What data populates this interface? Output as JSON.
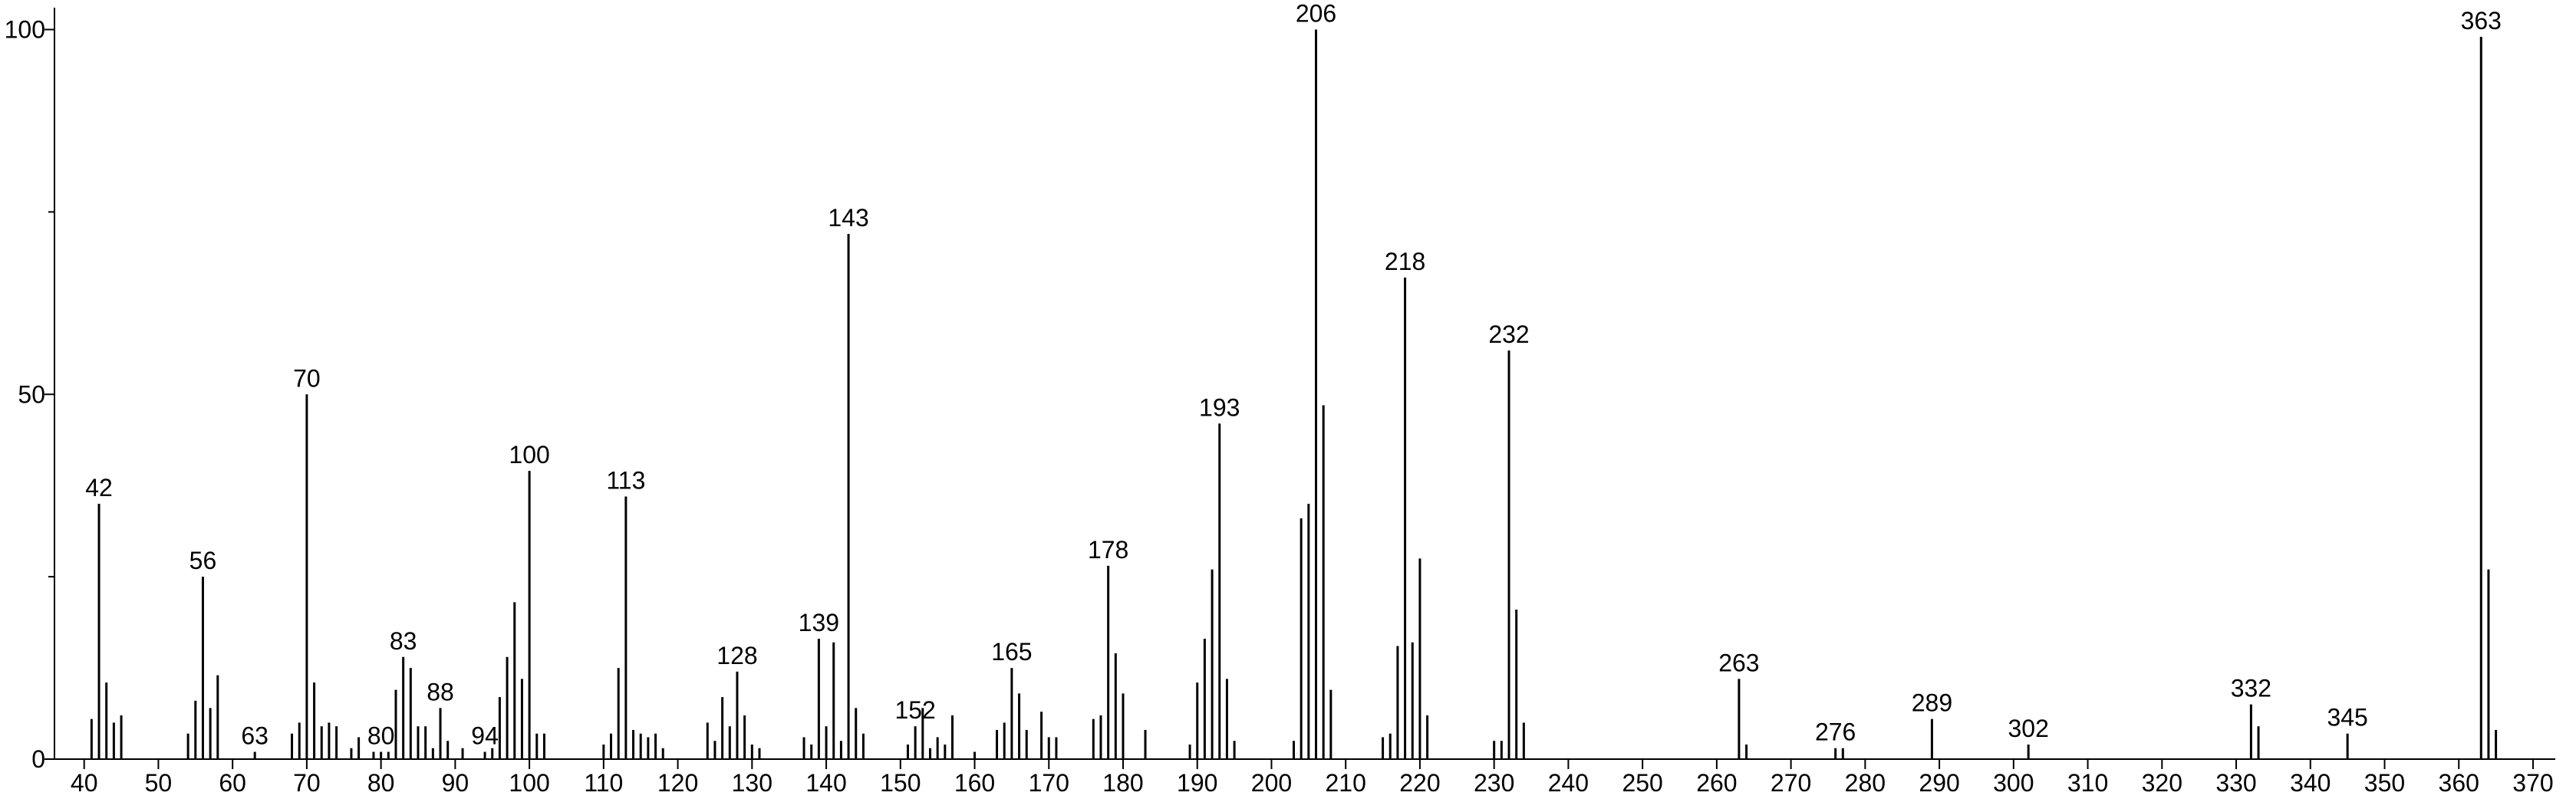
{
  "chart_data": {
    "type": "stick",
    "x": [
      41,
      42,
      43,
      44,
      45,
      54,
      55,
      56,
      57,
      58,
      63,
      68,
      69,
      70,
      71,
      72,
      73,
      74,
      76,
      77,
      79,
      80,
      81,
      82,
      83,
      84,
      85,
      86,
      87,
      88,
      89,
      91,
      94,
      95,
      96,
      97,
      98,
      99,
      100,
      101,
      102,
      110,
      111,
      112,
      113,
      114,
      115,
      116,
      117,
      118,
      124,
      125,
      126,
      127,
      128,
      129,
      130,
      131,
      137,
      138,
      139,
      140,
      141,
      142,
      143,
      144,
      145,
      151,
      152,
      153,
      154,
      155,
      156,
      157,
      160,
      163,
      164,
      165,
      166,
      167,
      169,
      170,
      171,
      176,
      177,
      178,
      179,
      180,
      183,
      189,
      190,
      191,
      192,
      193,
      194,
      195,
      203,
      204,
      205,
      206,
      207,
      208,
      215,
      216,
      217,
      218,
      219,
      220,
      221,
      230,
      231,
      232,
      233,
      234,
      263,
      264,
      276,
      277,
      289,
      302,
      332,
      333,
      345,
      363,
      364,
      365
    ],
    "values": [
      5.5,
      35,
      10.5,
      5,
      6,
      3.5,
      8,
      25,
      7,
      11.5,
      1,
      3.5,
      5,
      50,
      10.5,
      4.5,
      5,
      4.5,
      1.5,
      3,
      1,
      1,
      1,
      9.5,
      14,
      12.5,
      4.5,
      4.5,
      1.5,
      7,
      2.5,
      1.5,
      1,
      1.5,
      8.5,
      14,
      21.5,
      11,
      39.5,
      3.5,
      3.5,
      2,
      3.5,
      12.5,
      36,
      4,
      3.5,
      3,
      3.5,
      1.5,
      5,
      2.5,
      8.5,
      4.5,
      12,
      6,
      2,
      1.5,
      3,
      2,
      16.5,
      4.5,
      16,
      2.5,
      72,
      7,
      3.5,
      2,
      4.5,
      7,
      1.5,
      3,
      2,
      6,
      1,
      4,
      5,
      12.5,
      9,
      4,
      6.5,
      3,
      3,
      5.5,
      6,
      26.5,
      14.5,
      9,
      4,
      2,
      10.5,
      16.5,
      26,
      46,
      11,
      2.5,
      2.5,
      33,
      35,
      100,
      48.5,
      9.5,
      3,
      3.5,
      15.5,
      66,
      16,
      27.5,
      6,
      2.5,
      2.5,
      56,
      20.5,
      5,
      11,
      2,
      1.5,
      1.5,
      5.5,
      2,
      7.5,
      4.5,
      3.5,
      99,
      26,
      4
    ],
    "peak_labels": [
      42,
      56,
      63,
      70,
      80,
      83,
      88,
      94,
      100,
      113,
      128,
      139,
      143,
      152,
      165,
      178,
      193,
      206,
      218,
      232,
      263,
      276,
      289,
      302,
      332,
      345,
      363
    ],
    "color": "#000000",
    "xlim": [
      36,
      373
    ],
    "ylim": [
      0,
      103
    ],
    "xticks": [
      40,
      50,
      60,
      70,
      80,
      90,
      100,
      110,
      120,
      130,
      140,
      150,
      160,
      170,
      180,
      190,
      200,
      210,
      220,
      230,
      240,
      250,
      260,
      270,
      280,
      290,
      300,
      310,
      320,
      330,
      340,
      350,
      360,
      370
    ],
    "yticks": [
      0,
      50,
      100
    ],
    "yticks_minor": [
      25,
      75
    ]
  }
}
